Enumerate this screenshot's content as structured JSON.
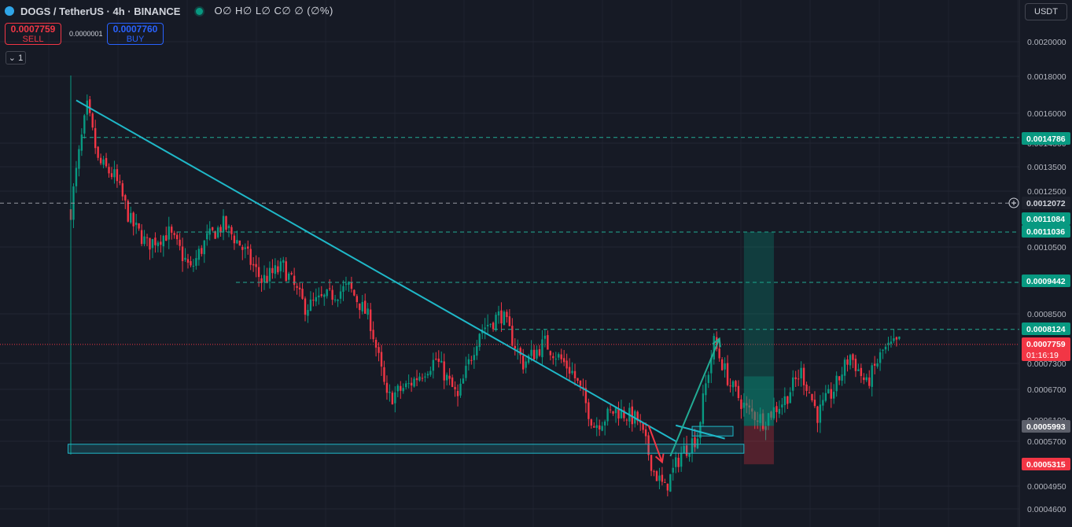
{
  "header": {
    "symbol": "DOGS / TetherUS · 4h · BINANCE",
    "ohlc": "O∅ H∅ L∅ C∅ ∅ (∅%)"
  },
  "trade": {
    "sell_price": "0.0007759",
    "sell_label": "SELL",
    "spread": "0.0000001",
    "buy_price": "0.0007760",
    "buy_label": "BUY"
  },
  "indicators_toggle": "1",
  "currency": "USDT",
  "colors": {
    "background": "#161a25",
    "up": "#089981",
    "down": "#f23645",
    "trendline": "#1fb8c8",
    "hline": "#22ab94"
  },
  "chart_data": {
    "type": "candlestick",
    "price_scale": {
      "ticks": [
        "0.0020000",
        "0.0018000",
        "0.0016000",
        "0.0014500",
        "0.0013500",
        "0.0012500",
        "0.0010500",
        "0.0008500",
        "0.0007300",
        "0.0006700",
        "0.0006100",
        "0.0005700",
        "0.0004950",
        "0.0004600"
      ]
    },
    "price_labels": [
      {
        "value": "0.0014786",
        "kind": "green"
      },
      {
        "value": "0.0012072",
        "kind": "crosshair"
      },
      {
        "value": "0.0011084",
        "kind": "green"
      },
      {
        "value": "0.0011036",
        "kind": "green"
      },
      {
        "value": "0.0009442",
        "kind": "green"
      },
      {
        "value": "0.0008124",
        "kind": "green"
      },
      {
        "value": "0.0007759",
        "kind": "last",
        "countdown": "01:16:19"
      },
      {
        "value": "0.0005993",
        "kind": "gray"
      },
      {
        "value": "0.0005315",
        "kind": "red"
      }
    ],
    "horizontal_levels": [
      0.0014786,
      0.0011036,
      0.0009442,
      0.0008124
    ],
    "last_price": 0.0007759,
    "crosshair_price": 0.0012072,
    "price_path": [
      [
        0,
        0.00118
      ],
      [
        3,
        0.0014
      ],
      [
        6,
        0.00163
      ],
      [
        10,
        0.00137
      ],
      [
        16,
        0.00131
      ],
      [
        22,
        0.00114
      ],
      [
        28,
        0.00106
      ],
      [
        36,
        0.0011
      ],
      [
        44,
        0.00098
      ],
      [
        50,
        0.00108
      ],
      [
        56,
        0.00113
      ],
      [
        62,
        0.00106
      ],
      [
        70,
        0.00095
      ],
      [
        78,
        0.00099
      ],
      [
        86,
        0.00087
      ],
      [
        94,
        0.0009
      ],
      [
        102,
        0.00093
      ],
      [
        110,
        0.00083
      ],
      [
        116,
        0.00065
      ],
      [
        124,
        0.00068
      ],
      [
        134,
        0.00074
      ],
      [
        142,
        0.00065
      ],
      [
        150,
        0.00081
      ],
      [
        158,
        0.00085
      ],
      [
        166,
        0.00073
      ],
      [
        174,
        0.00078
      ],
      [
        184,
        0.00071
      ],
      [
        192,
        0.0006
      ],
      [
        200,
        0.00063
      ],
      [
        208,
        0.00061
      ],
      [
        214,
        0.00052
      ],
      [
        218,
        0.00049
      ],
      [
        224,
        0.00055
      ],
      [
        230,
        0.00058
      ],
      [
        236,
        0.00078
      ],
      [
        242,
        0.00068
      ],
      [
        248,
        0.00063
      ],
      [
        254,
        0.00061
      ],
      [
        262,
        0.00065
      ],
      [
        268,
        0.00071
      ],
      [
        274,
        0.00062
      ],
      [
        280,
        0.00067
      ],
      [
        286,
        0.00075
      ],
      [
        292,
        0.00068
      ],
      [
        298,
        0.00076
      ],
      [
        304,
        0.00078
      ]
    ],
    "candle_count": 305,
    "drawings": {
      "trendline": {
        "from": [
          2,
          0.00167
        ],
        "to": [
          222,
          0.00057
        ]
      },
      "support_zone": {
        "from_index": -1,
        "to_index": 247,
        "top": 0.000565,
        "bottom": 0.00055
      },
      "small_zone": {
        "from_index": 228,
        "to_index": 243,
        "top": 0.000598,
        "bottom": 0.00058
      },
      "trendline_ext": {
        "from": [
          222,
          0.0006
        ],
        "to": [
          240,
          0.000575
        ]
      },
      "arrow_down": {
        "from": [
          212,
          0.0006
        ],
        "to": [
          217,
          0.000535
        ]
      },
      "arrow_up": {
        "from": [
          220,
          0.000545
        ],
        "to": [
          238,
          0.00079
        ]
      },
      "position": {
        "from_index": 247,
        "to_index": 258,
        "entry": 0.000599,
        "target": 0.0011036,
        "stop": 0.0005315,
        "current": 0.0007
      }
    }
  }
}
